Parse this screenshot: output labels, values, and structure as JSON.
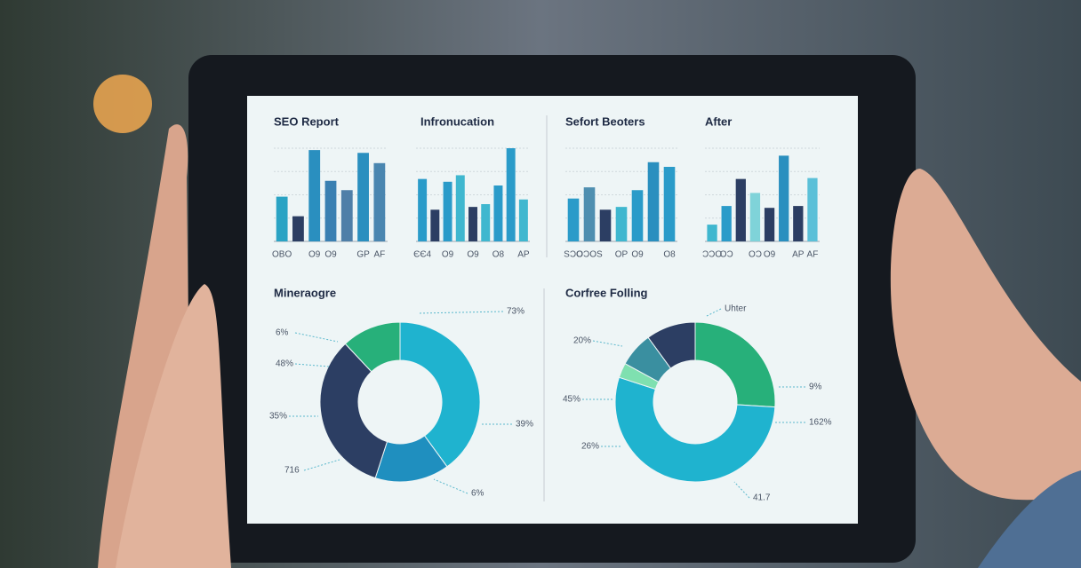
{
  "chart_data": [
    {
      "type": "bar",
      "title": "SEO Report",
      "categories": [
        "OBO",
        null,
        "O9",
        "O9",
        null,
        "GP",
        "AF"
      ],
      "values": [
        48,
        27,
        98,
        65,
        55,
        95,
        84
      ],
      "colors": [
        "#2aa3c4",
        "#2c3e63",
        "#2a8fbf",
        "#3a80b2",
        "#4f7fa8",
        "#2a8fbf",
        "#4a86b0"
      ],
      "ylim": [
        0,
        100
      ],
      "yticks": [
        25,
        50,
        75,
        100
      ],
      "grid": true
    },
    {
      "type": "bar",
      "title": "Infronucation",
      "categories": [
        "ЄЄ4",
        null,
        "O9",
        null,
        "O9",
        null,
        "O8",
        null,
        "AP"
      ],
      "values": [
        67,
        34,
        64,
        71,
        37,
        40,
        60,
        100,
        45
      ],
      "colors": [
        "#2a9bc9",
        "#2c3e63",
        "#2a9bc9",
        "#3fb7cf",
        "#2c3e63",
        "#3fb7cf",
        "#2a9bc9",
        "#2a9bc9",
        "#3fb7cf"
      ],
      "ylim": [
        0,
        100
      ],
      "yticks": [
        25,
        50,
        75,
        100
      ],
      "grid": true
    },
    {
      "type": "bar",
      "title": "Sefort Beoters",
      "categories": [
        "SƆO",
        "OƆOS",
        null,
        "OP",
        "O9",
        null,
        "O8"
      ],
      "values": [
        46,
        58,
        34,
        37,
        55,
        85,
        80
      ],
      "colors": [
        "#2a9bc9",
        "#4f8fb0",
        "#2c3e63",
        "#3fb7cf",
        "#2a9bc9",
        "#2a8fbf",
        "#2a9bc9"
      ],
      "ylim": [
        0,
        100
      ],
      "yticks": [
        25,
        50,
        75,
        100
      ],
      "grid": true
    },
    {
      "type": "bar",
      "title": "After",
      "categories": [
        "ƆƆO",
        "OƆ",
        null,
        "OƆ",
        "O9",
        null,
        "AP",
        "AF"
      ],
      "values": [
        18,
        38,
        67,
        52,
        36,
        92,
        38,
        68
      ],
      "colors": [
        "#3fb7cf",
        "#2a9bc9",
        "#2c3e63",
        "#7fd3d9",
        "#2c3e63",
        "#2a8fbf",
        "#2c3e63",
        "#5bc0d8"
      ],
      "ylim": [
        0,
        100
      ],
      "yticks": [
        25,
        50,
        75,
        100
      ],
      "grid": true
    },
    {
      "type": "pie",
      "title": "Mineraogre",
      "values": [
        40,
        15,
        33,
        12
      ],
      "colors": [
        "#1fb3cf",
        "#1f8fbf",
        "#2c3e63",
        "#27b07a"
      ],
      "annotations": [
        "73%",
        "6%",
        "48%",
        "35%",
        "716",
        "39%",
        "6%"
      ]
    },
    {
      "type": "pie",
      "title": "Corfree Folling",
      "values": [
        26,
        54,
        3,
        7,
        10
      ],
      "colors": [
        "#27b07a",
        "#1fb3cf",
        "#7fe0b0",
        "#3a8fa0",
        "#2c3e63"
      ],
      "annotations": [
        "Uhter",
        "9%",
        "162%",
        "41.7",
        "26%",
        "45%",
        "20%"
      ]
    }
  ]
}
